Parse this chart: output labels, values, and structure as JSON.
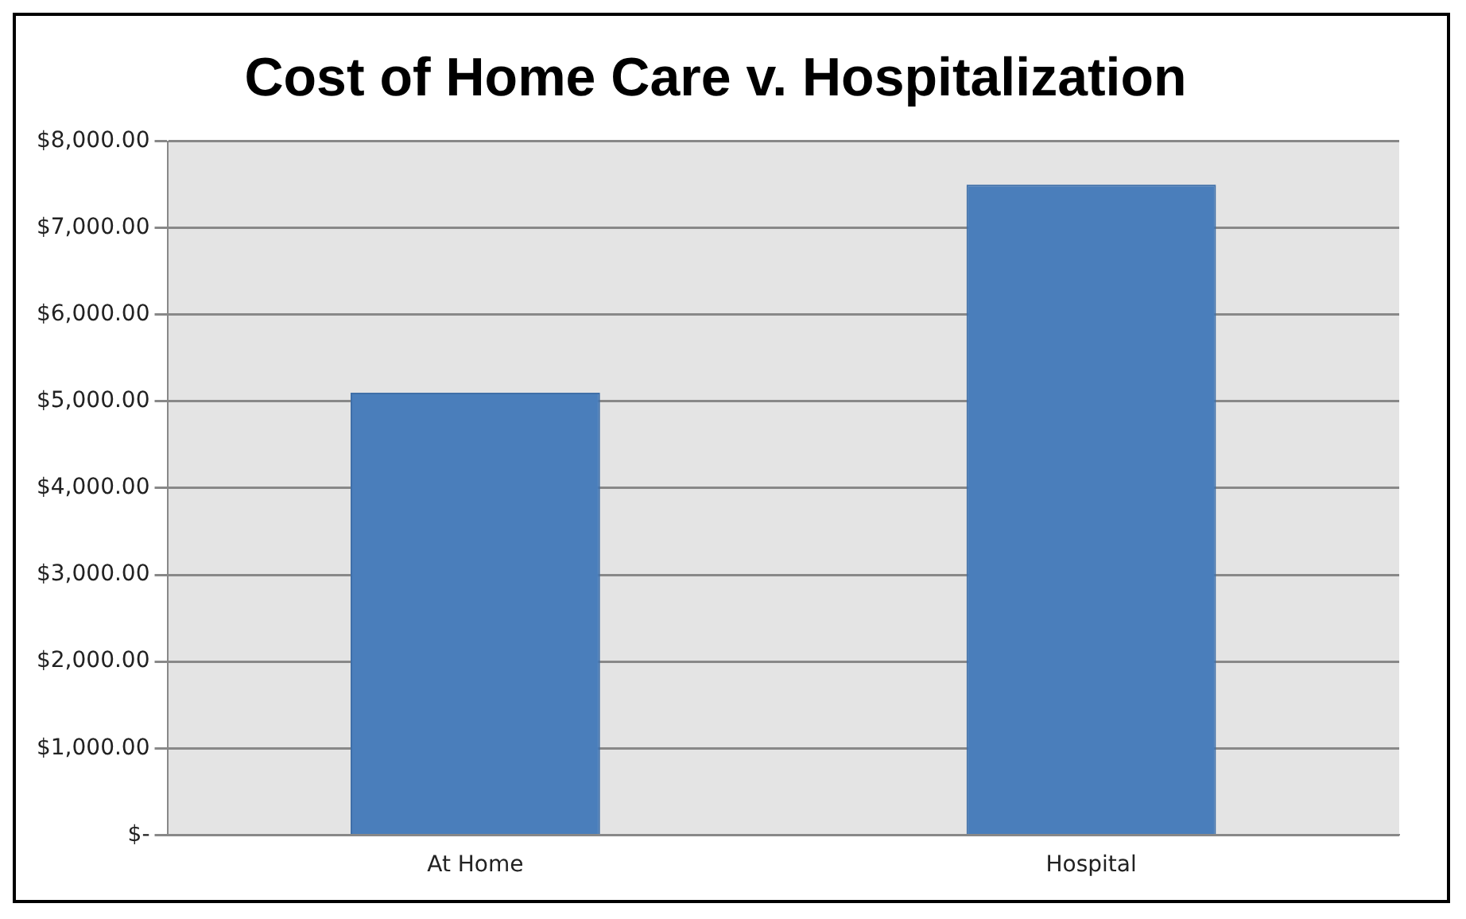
{
  "chart_data": {
    "type": "bar",
    "title": "Cost of Home Care v. Hospitalization",
    "categories": [
      "At Home",
      "Hospital"
    ],
    "values": [
      5100,
      7500
    ],
    "color": "#4a7ebb",
    "ylim": [
      0,
      8000
    ],
    "yticks": [
      {
        "value": 0,
        "label": "$-"
      },
      {
        "value": 1000,
        "label": "$1,000.00"
      },
      {
        "value": 2000,
        "label": "$2,000.00"
      },
      {
        "value": 3000,
        "label": "$3,000.00"
      },
      {
        "value": 4000,
        "label": "$4,000.00"
      },
      {
        "value": 5000,
        "label": "$5,000.00"
      },
      {
        "value": 6000,
        "label": "$6,000.00"
      },
      {
        "value": 7000,
        "label": "$7,000.00"
      },
      {
        "value": 8000,
        "label": "$8,000.00"
      }
    ],
    "grid": "y",
    "legend": false
  }
}
